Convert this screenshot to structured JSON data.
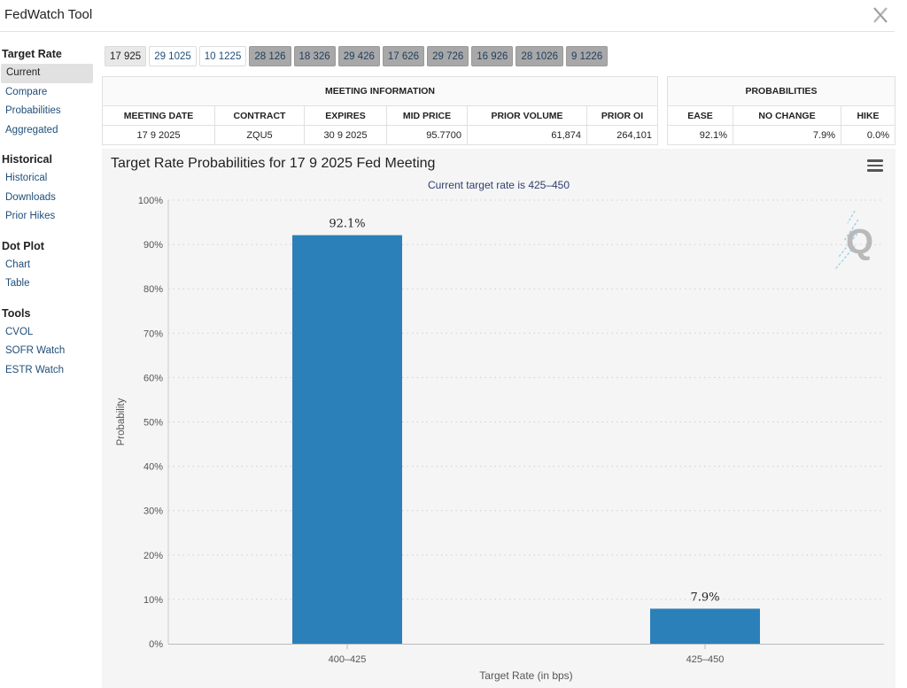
{
  "app": {
    "title": "FedWatch Tool"
  },
  "sidebar": {
    "sections": [
      {
        "title": "Target Rate",
        "items": [
          "Current",
          "Compare",
          "Probabilities",
          "Aggregated"
        ]
      },
      {
        "title": "Historical",
        "items": [
          "Historical",
          "Downloads",
          "Prior Hikes"
        ]
      },
      {
        "title": "Dot Plot",
        "items": [
          "Chart",
          "Table"
        ]
      },
      {
        "title": "Tools",
        "items": [
          "CVOL",
          "SOFR Watch",
          "ESTR Watch"
        ]
      }
    ]
  },
  "tabs": [
    {
      "label": "17 925",
      "style": "selected"
    },
    {
      "label": "29 1025",
      "style": "white"
    },
    {
      "label": "10 1225",
      "style": "white"
    },
    {
      "label": "28 126",
      "style": "grey"
    },
    {
      "label": "18 326",
      "style": "grey"
    },
    {
      "label": "29 426",
      "style": "grey"
    },
    {
      "label": "17 626",
      "style": "grey"
    },
    {
      "label": "29 726",
      "style": "grey"
    },
    {
      "label": "16 926",
      "style": "grey"
    },
    {
      "label": "28 1026",
      "style": "grey"
    },
    {
      "label": "9 1226",
      "style": "grey"
    }
  ],
  "meeting_info": {
    "caption": "MEETING INFORMATION",
    "headers": [
      "MEETING DATE",
      "CONTRACT",
      "EXPIRES",
      "MID PRICE",
      "PRIOR VOLUME",
      "PRIOR OI"
    ],
    "row": [
      "17 9 2025",
      "ZQU5",
      "30 9 2025",
      "95.7700",
      "61,874",
      "264,101"
    ]
  },
  "probabilities": {
    "caption": "PROBABILITIES",
    "headers": [
      "EASE",
      "NO CHANGE",
      "HIKE"
    ],
    "row": [
      "92.1%",
      "7.9%",
      "0.0%"
    ]
  },
  "chart_data": {
    "type": "bar",
    "title": "Target Rate Probabilities for 17 9 2025 Fed Meeting",
    "subtitle": "Current target rate is 425–450",
    "xlabel": "Target Rate (in bps)",
    "ylabel": "Probability",
    "categories": [
      "400–425",
      "425–450"
    ],
    "values": [
      92.1,
      7.9
    ],
    "data_labels": [
      "92.1%",
      "7.9%"
    ],
    "ylim": [
      0,
      100
    ],
    "yticks": [
      "0%",
      "10%",
      "20%",
      "30%",
      "40%",
      "50%",
      "60%",
      "70%",
      "80%",
      "90%",
      "100%"
    ],
    "grid": true,
    "bar_color": "#2b80b9"
  }
}
